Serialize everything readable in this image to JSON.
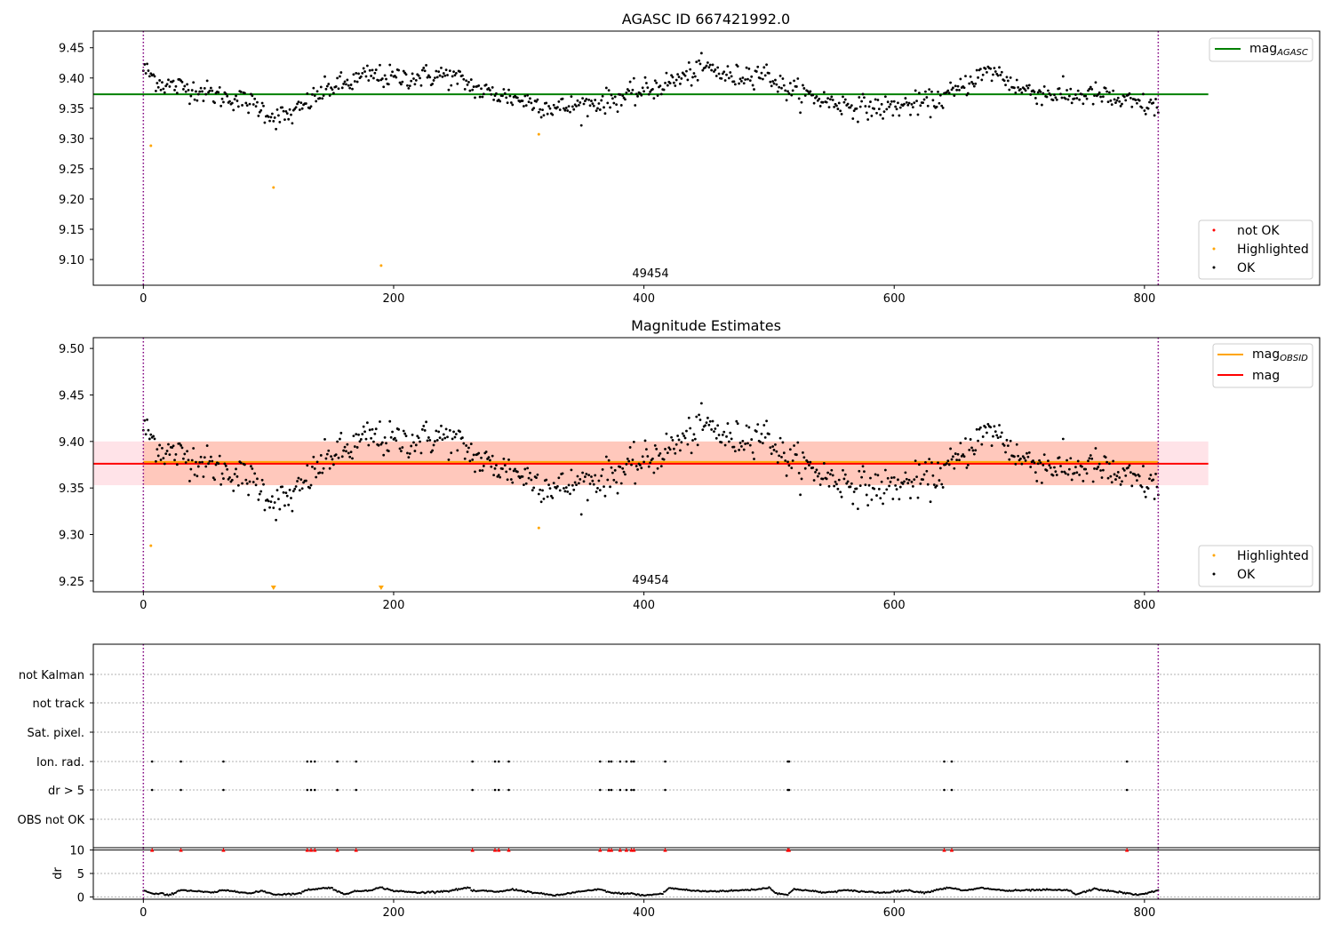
{
  "chart_data": [
    {
      "type": "scatter",
      "title": "AGASC ID 667421992.0",
      "annotation": "49454",
      "xlim": [
        -40,
        940
      ],
      "ylim": [
        9.0575,
        9.4775
      ],
      "xticks": [
        "0",
        "200",
        "400",
        "600",
        "800"
      ],
      "yticks": [
        "9.10",
        "9.15",
        "9.20",
        "9.25",
        "9.30",
        "9.35",
        "9.40",
        "9.45"
      ],
      "vlines_x": [
        0,
        811
      ],
      "hline": {
        "name": "mag",
        "name_sub": "AGASC",
        "y": 9.373,
        "x_range": [
          -40,
          851
        ],
        "color": "#008000"
      },
      "legend_line": {
        "label": "mag",
        "label_sub": "AGASC"
      },
      "legend_points": [
        "not OK",
        "Highlighted",
        "OK"
      ],
      "series": [
        {
          "name": "OK",
          "color": "#000000",
          "x_range": [
            0,
            811
          ],
          "y_path": [
            [
              0,
              9.415
            ],
            [
              15,
              9.39
            ],
            [
              30,
              9.385
            ],
            [
              45,
              9.38
            ],
            [
              60,
              9.37
            ],
            [
              75,
              9.365
            ],
            [
              90,
              9.355
            ],
            [
              105,
              9.335
            ],
            [
              120,
              9.34
            ],
            [
              135,
              9.365
            ],
            [
              150,
              9.385
            ],
            [
              165,
              9.392
            ],
            [
              180,
              9.405
            ],
            [
              200,
              9.4
            ],
            [
              220,
              9.402
            ],
            [
              240,
              9.405
            ],
            [
              255,
              9.395
            ],
            [
              270,
              9.378
            ],
            [
              290,
              9.37
            ],
            [
              310,
              9.36
            ],
            [
              330,
              9.35
            ],
            [
              350,
              9.355
            ],
            [
              370,
              9.362
            ],
            [
              390,
              9.372
            ],
            [
              410,
              9.385
            ],
            [
              430,
              9.4
            ],
            [
              450,
              9.418
            ],
            [
              470,
              9.4
            ],
            [
              490,
              9.41
            ],
            [
              500,
              9.405
            ],
            [
              510,
              9.385
            ],
            [
              530,
              9.372
            ],
            [
              550,
              9.36
            ],
            [
              570,
              9.353
            ],
            [
              590,
              9.35
            ],
            [
              610,
              9.355
            ],
            [
              630,
              9.36
            ],
            [
              650,
              9.378
            ],
            [
              665,
              9.402
            ],
            [
              680,
              9.412
            ],
            [
              700,
              9.382
            ],
            [
              720,
              9.375
            ],
            [
              740,
              9.37
            ],
            [
              760,
              9.373
            ],
            [
              780,
              9.362
            ],
            [
              800,
              9.355
            ],
            [
              811,
              9.35
            ]
          ],
          "noise": 0.012
        },
        {
          "name": "Highlighted",
          "color": "#ffa500",
          "points": [
            [
              6,
              9.288
            ],
            [
              104,
              9.219
            ],
            [
              190,
              9.09
            ],
            [
              316,
              9.307
            ]
          ]
        }
      ]
    },
    {
      "type": "scatter",
      "title": "Magnitude Estimates",
      "annotation": "49454",
      "xlim": [
        -40,
        940
      ],
      "ylim": [
        9.2384,
        9.5116
      ],
      "xticks": [
        "0",
        "200",
        "400",
        "600",
        "800"
      ],
      "yticks": [
        "9.25",
        "9.30",
        "9.35",
        "9.40",
        "9.45",
        "9.50"
      ],
      "vlines_x": [
        0,
        811
      ],
      "hlines": [
        {
          "name": "mag",
          "name_sub": "OBSID",
          "y": 9.377,
          "x_range": [
            -40,
            851
          ],
          "color": "#ffa500"
        },
        {
          "name": "mag",
          "y": 9.377,
          "x_range": [
            -40,
            851
          ],
          "color": "#ff0000"
        }
      ],
      "bands": [
        {
          "y_range": [
            9.353,
            9.4
          ],
          "x_range": [
            -40,
            851
          ],
          "color": "#ffc0cb",
          "opacity": 0.45
        },
        {
          "y_range": [
            9.353,
            9.4
          ],
          "x_range": [
            0,
            811
          ],
          "color": "#ffa07a",
          "opacity": 0.4
        }
      ],
      "legend_lines": [
        {
          "label": "mag",
          "label_sub": "OBSID",
          "color": "#ffa500"
        },
        {
          "label": "mag",
          "label_sub": "",
          "color": "#ff0000"
        }
      ],
      "legend_points": [
        "Highlighted",
        "OK"
      ],
      "series": [
        {
          "name": "OK",
          "color": "#000000",
          "same_as": "panel1"
        },
        {
          "name": "Highlighted",
          "color": "#ffa500",
          "points": [
            [
              6,
              9.288
            ],
            [
              316,
              9.307
            ]
          ],
          "markers_below": [
            104,
            190
          ]
        }
      ]
    },
    {
      "type": "scatter",
      "title": "",
      "xlim": [
        -40,
        940
      ],
      "yticks_labels": [
        "not Kalman",
        "not track",
        "Sat. pixel.",
        "Ion. rad.",
        "dr > 5",
        "OBS not OK"
      ],
      "vlines_x": [
        0,
        811
      ],
      "flag_events_x": [
        7,
        30,
        64,
        131,
        134,
        137,
        155,
        170,
        263,
        281,
        284,
        292,
        365,
        372,
        374,
        381,
        386,
        390,
        392,
        417,
        515,
        516,
        640,
        646,
        786
      ],
      "flag_rows": [
        "Ion. rad.",
        "dr > 5"
      ]
    },
    {
      "type": "scatter",
      "title": "",
      "ylabel": "dr",
      "xlim": [
        -40,
        940
      ],
      "ylim": [
        -0.5,
        10.5
      ],
      "xticks": [
        "0",
        "200",
        "400",
        "600",
        "800"
      ],
      "yticks": [
        "0",
        "5",
        "10"
      ],
      "vlines_x": [
        0,
        811
      ],
      "hline_y": 10,
      "red_markers_x": [
        7,
        30,
        64,
        131,
        134,
        137,
        155,
        170,
        263,
        281,
        284,
        292,
        365,
        372,
        374,
        381,
        386,
        390,
        392,
        417,
        515,
        516,
        640,
        646,
        786
      ],
      "dr_knots": [
        [
          0,
          1.4
        ],
        [
          8,
          0.6
        ],
        [
          15,
          0.7
        ],
        [
          20,
          0.3
        ],
        [
          30,
          1.5
        ],
        [
          55,
          0.9
        ],
        [
          64,
          1.4
        ],
        [
          75,
          1.2
        ],
        [
          85,
          0.7
        ],
        [
          95,
          1.3
        ],
        [
          105,
          0.5
        ],
        [
          125,
          0.7
        ],
        [
          130,
          1.5
        ],
        [
          150,
          2.0
        ],
        [
          155,
          1.2
        ],
        [
          160,
          0.6
        ],
        [
          170,
          1.2
        ],
        [
          180,
          1.4
        ],
        [
          190,
          2.0
        ],
        [
          200,
          1.3
        ],
        [
          220,
          0.9
        ],
        [
          245,
          1.3
        ],
        [
          260,
          2.0
        ],
        [
          263,
          1.2
        ],
        [
          270,
          1.3
        ],
        [
          285,
          1.1
        ],
        [
          295,
          1.6
        ],
        [
          320,
          0.6
        ],
        [
          330,
          0.3
        ],
        [
          345,
          1.0
        ],
        [
          365,
          1.6
        ],
        [
          375,
          0.8
        ],
        [
          390,
          0.7
        ],
        [
          400,
          0.3
        ],
        [
          415,
          0.7
        ],
        [
          420,
          1.9
        ],
        [
          440,
          1.3
        ],
        [
          450,
          1.2
        ],
        [
          470,
          1.3
        ],
        [
          490,
          1.6
        ],
        [
          500,
          2.0
        ],
        [
          505,
          0.9
        ],
        [
          515,
          0.4
        ],
        [
          520,
          1.7
        ],
        [
          545,
          0.9
        ],
        [
          560,
          1.4
        ],
        [
          590,
          0.9
        ],
        [
          610,
          1.4
        ],
        [
          625,
          0.9
        ],
        [
          635,
          1.6
        ],
        [
          645,
          2.0
        ],
        [
          655,
          1.3
        ],
        [
          670,
          1.9
        ],
        [
          690,
          1.3
        ],
        [
          720,
          1.5
        ],
        [
          740,
          1.4
        ],
        [
          745,
          0.5
        ],
        [
          760,
          1.7
        ],
        [
          780,
          1.0
        ],
        [
          795,
          0.4
        ],
        [
          811,
          1.4
        ]
      ]
    }
  ]
}
